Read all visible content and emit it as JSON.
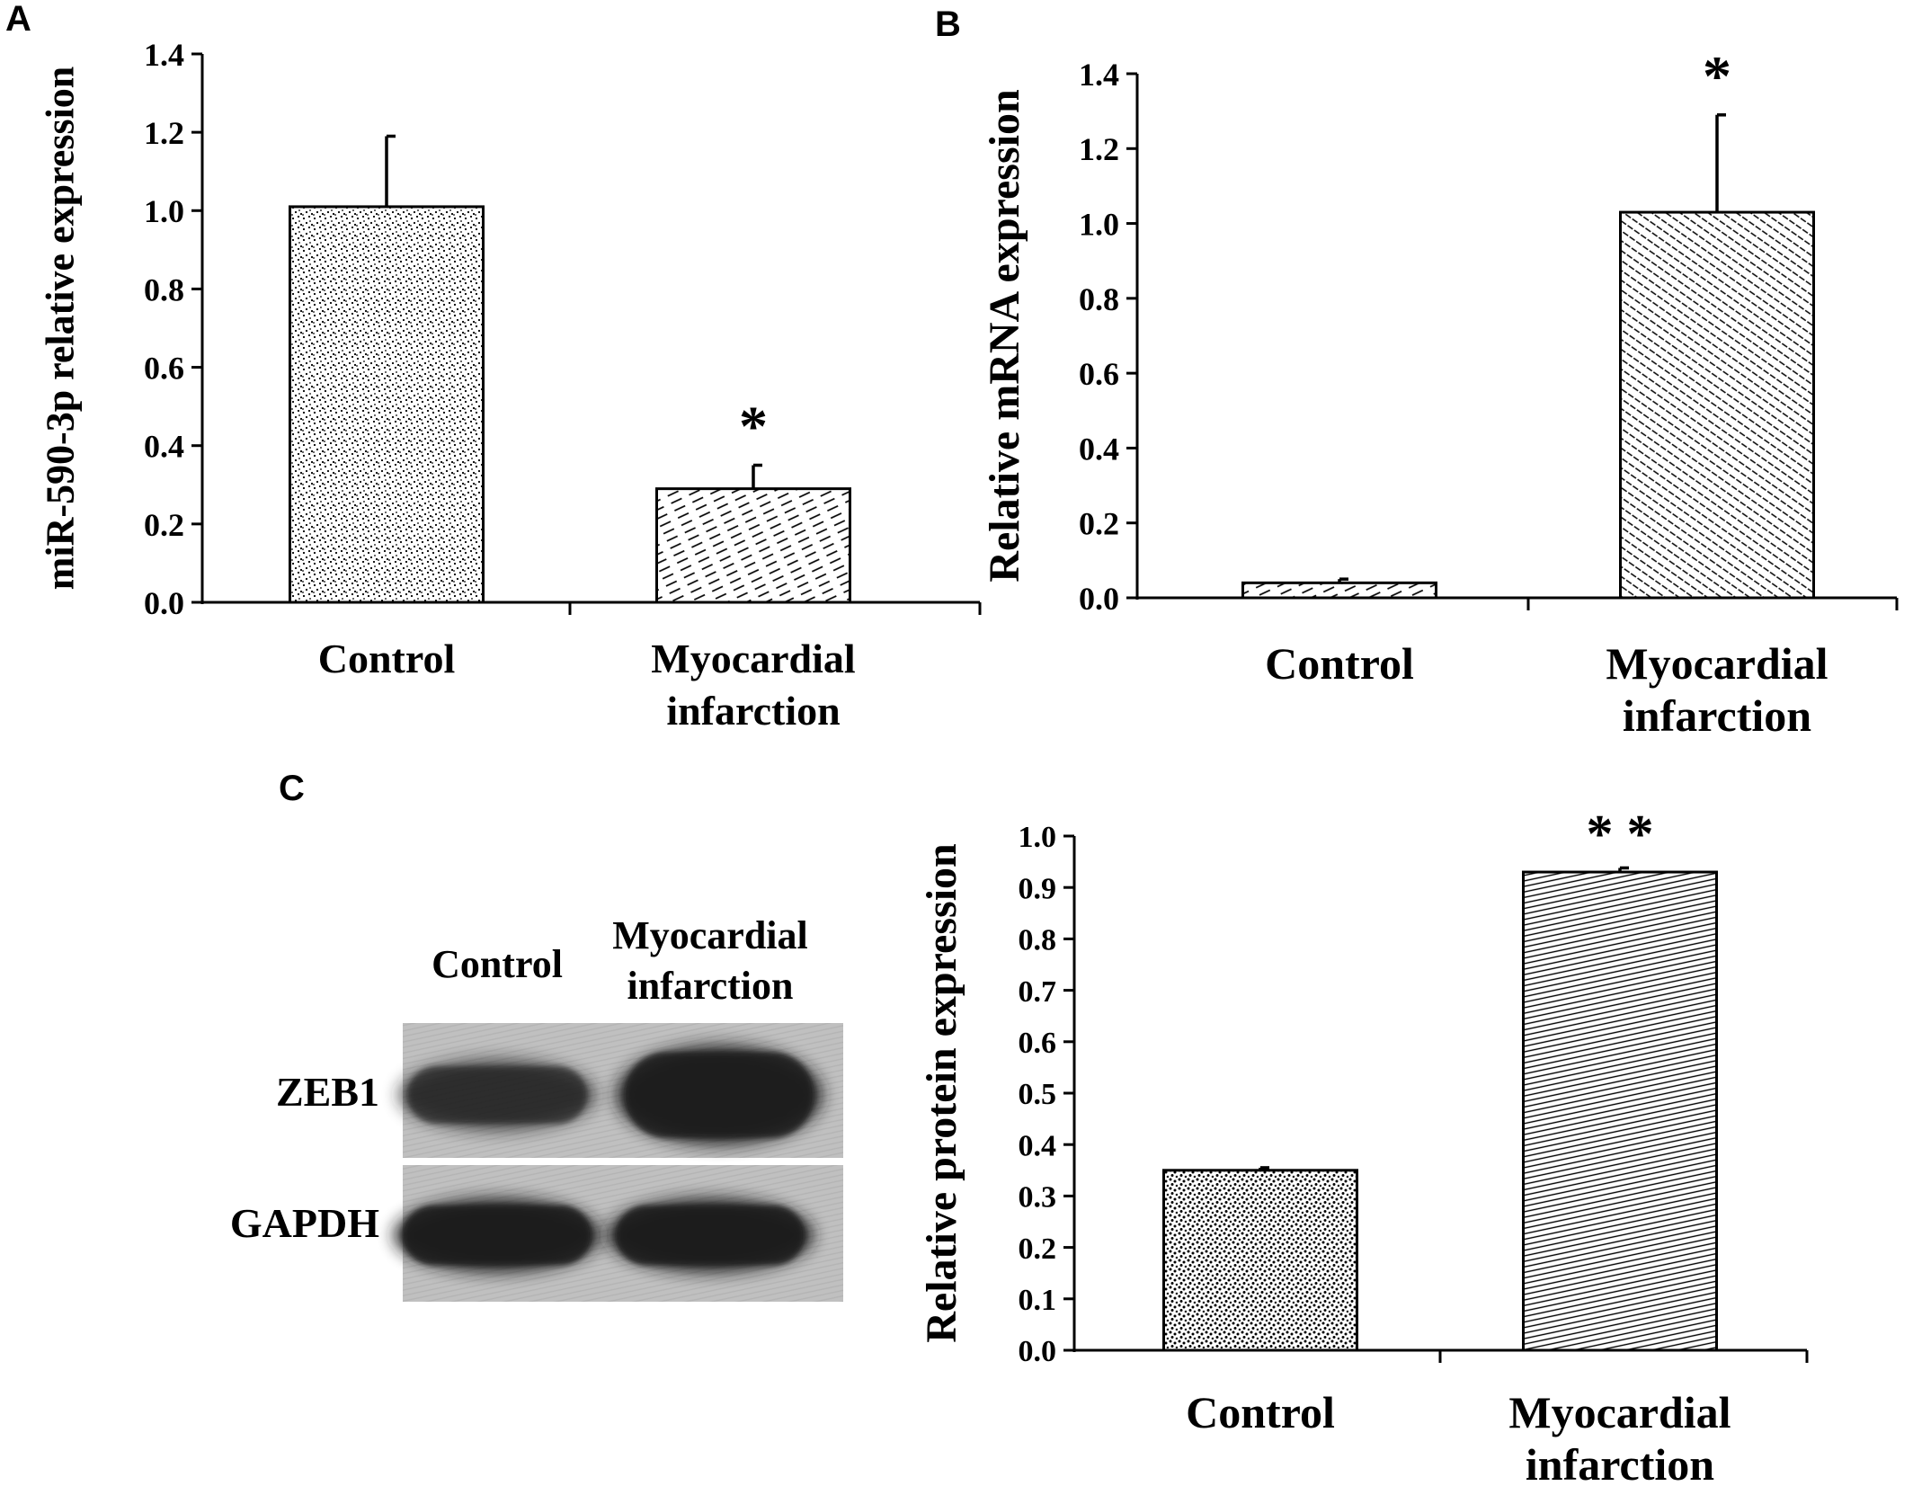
{
  "figure": {
    "panel_labels": [
      "A",
      "B",
      "C"
    ]
  },
  "colors": {
    "ink": "#000000",
    "background": "#ffffff",
    "blot_band": "#1c1c1c"
  },
  "chart_data": [
    {
      "type": "bar",
      "panel": "A",
      "title": "",
      "ylabel": "miR-590-3p relative expression",
      "xlabel": "",
      "ylim": [
        0,
        1.4
      ],
      "yticks": [
        "0.0",
        "0.2",
        "0.4",
        "0.6",
        "0.8",
        "1.0",
        "1.2",
        "1.4"
      ],
      "categories": [
        [
          "Control"
        ],
        [
          "Myocardial",
          "infarction"
        ]
      ],
      "values": [
        1.01,
        0.29
      ],
      "errors": [
        0.18,
        0.06
      ],
      "annotations": [
        "",
        "*"
      ],
      "grid": false,
      "legend": "none"
    },
    {
      "type": "bar",
      "panel": "B",
      "title": "",
      "ylabel": "Relative mRNA expression",
      "xlabel": "",
      "ylim": [
        0,
        1.4
      ],
      "yticks": [
        "0.0",
        "0.2",
        "0.4",
        "0.6",
        "0.8",
        "1.0",
        "1.2",
        "1.4"
      ],
      "categories": [
        [
          "Control"
        ],
        [
          "Myocardial",
          "infarction"
        ]
      ],
      "values": [
        0.04,
        1.03
      ],
      "errors": [
        0.01,
        0.26
      ],
      "annotations": [
        "",
        "*"
      ],
      "grid": false,
      "legend": "none"
    },
    {
      "type": "bar",
      "panel": "C",
      "title": "",
      "ylabel": "Relative protein expression",
      "xlabel": "",
      "ylim": [
        0,
        1.0
      ],
      "yticks": [
        "0.0",
        "0.1",
        "0.2",
        "0.3",
        "0.4",
        "0.5",
        "0.6",
        "0.7",
        "0.8",
        "0.9",
        "1.0"
      ],
      "categories": [
        [
          "Control"
        ],
        [
          "Myocardial",
          "infarction"
        ]
      ],
      "values": [
        0.35,
        0.93
      ],
      "errors": [
        0.005,
        0.008
      ],
      "annotations": [
        "",
        "* *"
      ],
      "grid": false,
      "legend": "none"
    }
  ],
  "western_blot": {
    "lane_labels": [
      [
        "Control"
      ],
      [
        "Myocardial",
        "infarction"
      ]
    ],
    "rows": [
      {
        "name": "ZEB1",
        "intensities": [
          0.55,
          0.9
        ]
      },
      {
        "name": "GAPDH",
        "intensities": [
          0.95,
          0.95
        ]
      }
    ]
  }
}
